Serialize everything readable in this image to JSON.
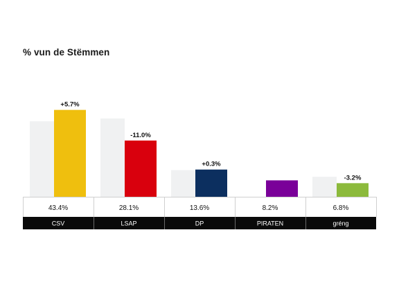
{
  "title": "% vun de Stëmmen",
  "chart_data": {
    "type": "bar",
    "title": "% vun de Stëmmen",
    "categories": [
      "CSV",
      "LSAP",
      "DP",
      "PIRATEN",
      "gréng"
    ],
    "series": [
      {
        "values": [
          37.7,
          39.1,
          13.3,
          null,
          10.0
        ],
        "color": "#f0f1f2"
      },
      {
        "values": [
          43.4,
          28.1,
          13.6,
          8.2,
          6.8
        ]
      }
    ],
    "colors": [
      "#efbf0e",
      "#d9000d",
      "#0c2f5f",
      "#7a0099",
      "#8cba3c"
    ],
    "value_labels": [
      "43.4%",
      "28.1%",
      "13.6%",
      "8.2%",
      "6.8%"
    ],
    "change_labels": [
      "+5.7%",
      "-11.0%",
      "+0.3%",
      "",
      "-3.2%"
    ],
    "ylim": [
      0,
      45
    ]
  }
}
